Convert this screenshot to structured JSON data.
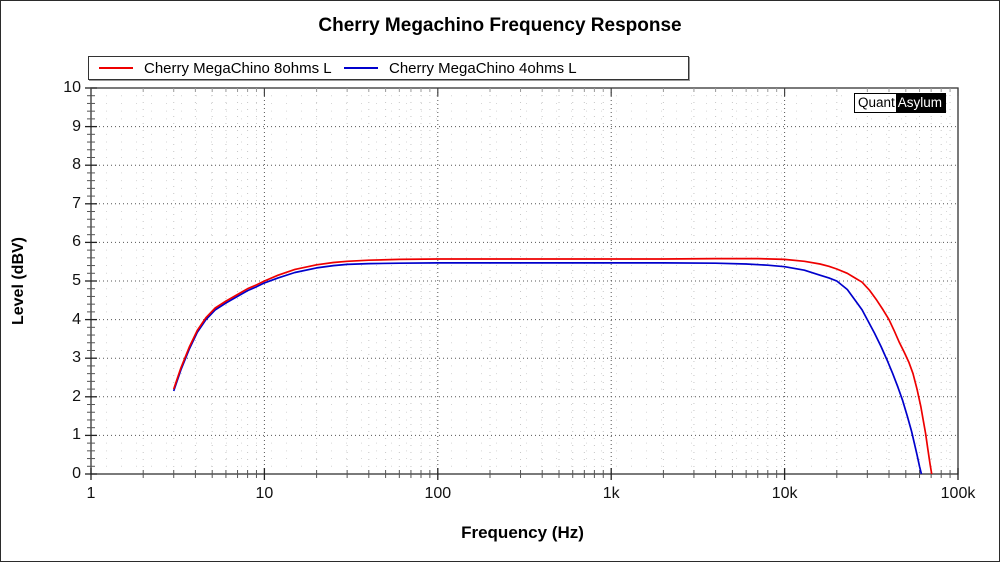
{
  "title": "Cherry Megachino Frequency Response",
  "watermark": {
    "part1": "Quant",
    "part2": "Asylum"
  },
  "legend": {
    "entries": [
      {
        "label": "Cherry MegaChino 8ohms L",
        "color": "#ee0000"
      },
      {
        "label": "Cherry MegaChino 4ohms L",
        "color": "#0000cc"
      }
    ]
  },
  "axes": {
    "x_title": "Frequency (Hz)",
    "y_title": "Level (dBV)"
  },
  "chart_data": {
    "type": "line",
    "title": "Cherry Megachino Frequency Response",
    "xlabel": "Frequency (Hz)",
    "ylabel": "Level (dBV)",
    "x_scale": "log",
    "xlim": [
      1,
      100000
    ],
    "ylim": [
      0,
      10
    ],
    "x_tick_values": [
      1,
      10,
      100,
      1000,
      10000,
      100000
    ],
    "x_tick_labels": [
      "1",
      "10",
      "100",
      "1k",
      "10k",
      "100k"
    ],
    "y_tick_values": [
      0,
      1,
      2,
      3,
      4,
      5,
      6,
      7,
      8,
      9,
      10
    ],
    "y_minor_step": 0.2,
    "grid": true,
    "legend_position": "top",
    "colors": {
      "major_grid": "#555555",
      "minor_grid": "#c6c6c6",
      "axis": "#333333"
    },
    "series": [
      {
        "name": "Cherry MegaChino 8ohms L",
        "color": "#ee0000",
        "points": [
          [
            3.0,
            2.2
          ],
          [
            3.3,
            2.75
          ],
          [
            3.7,
            3.3
          ],
          [
            4.1,
            3.72
          ],
          [
            4.6,
            4.05
          ],
          [
            5.2,
            4.3
          ],
          [
            6.0,
            4.48
          ],
          [
            7.0,
            4.65
          ],
          [
            8.0,
            4.8
          ],
          [
            9.0,
            4.9
          ],
          [
            10,
            5.0
          ],
          [
            12,
            5.15
          ],
          [
            15,
            5.3
          ],
          [
            20,
            5.42
          ],
          [
            25,
            5.48
          ],
          [
            30,
            5.51
          ],
          [
            40,
            5.54
          ],
          [
            60,
            5.56
          ],
          [
            100,
            5.57
          ],
          [
            200,
            5.57
          ],
          [
            500,
            5.57
          ],
          [
            1000,
            5.57
          ],
          [
            2000,
            5.57
          ],
          [
            4000,
            5.58
          ],
          [
            7000,
            5.58
          ],
          [
            10000,
            5.56
          ],
          [
            13000,
            5.51
          ],
          [
            16000,
            5.44
          ],
          [
            18000,
            5.38
          ],
          [
            20000,
            5.31
          ],
          [
            23000,
            5.2
          ],
          [
            25000,
            5.1
          ],
          [
            28000,
            4.97
          ],
          [
            31000,
            4.75
          ],
          [
            34000,
            4.5
          ],
          [
            37000,
            4.25
          ],
          [
            40000,
            4.0
          ],
          [
            43000,
            3.7
          ],
          [
            46000,
            3.4
          ],
          [
            49000,
            3.15
          ],
          [
            52000,
            2.9
          ],
          [
            55000,
            2.6
          ],
          [
            58000,
            2.2
          ],
          [
            61000,
            1.75
          ],
          [
            63000,
            1.4
          ],
          [
            65000,
            1.05
          ],
          [
            67000,
            0.65
          ],
          [
            69000,
            0.25
          ],
          [
            70500,
            0.0
          ]
        ]
      },
      {
        "name": "Cherry MegaChino 4ohms L",
        "color": "#0000cc",
        "points": [
          [
            3.0,
            2.15
          ],
          [
            3.3,
            2.7
          ],
          [
            3.7,
            3.25
          ],
          [
            4.1,
            3.67
          ],
          [
            4.6,
            4.0
          ],
          [
            5.2,
            4.25
          ],
          [
            6.0,
            4.43
          ],
          [
            7.0,
            4.6
          ],
          [
            8.0,
            4.75
          ],
          [
            9.0,
            4.85
          ],
          [
            10,
            4.95
          ],
          [
            12,
            5.08
          ],
          [
            15,
            5.22
          ],
          [
            20,
            5.34
          ],
          [
            25,
            5.4
          ],
          [
            30,
            5.43
          ],
          [
            40,
            5.45
          ],
          [
            60,
            5.46
          ],
          [
            100,
            5.47
          ],
          [
            200,
            5.47
          ],
          [
            500,
            5.47
          ],
          [
            1000,
            5.47
          ],
          [
            2000,
            5.47
          ],
          [
            4000,
            5.46
          ],
          [
            6000,
            5.44
          ],
          [
            8000,
            5.41
          ],
          [
            10000,
            5.37
          ],
          [
            13000,
            5.28
          ],
          [
            16000,
            5.15
          ],
          [
            18000,
            5.08
          ],
          [
            20000,
            5.0
          ],
          [
            23000,
            4.78
          ],
          [
            26000,
            4.45
          ],
          [
            28000,
            4.25
          ],
          [
            30000,
            4.0
          ],
          [
            33000,
            3.65
          ],
          [
            36000,
            3.3
          ],
          [
            39000,
            2.95
          ],
          [
            42000,
            2.6
          ],
          [
            45000,
            2.25
          ],
          [
            48000,
            1.9
          ],
          [
            51000,
            1.5
          ],
          [
            54000,
            1.1
          ],
          [
            56000,
            0.8
          ],
          [
            58000,
            0.5
          ],
          [
            60000,
            0.2
          ],
          [
            61500,
            0.0
          ]
        ]
      }
    ]
  }
}
